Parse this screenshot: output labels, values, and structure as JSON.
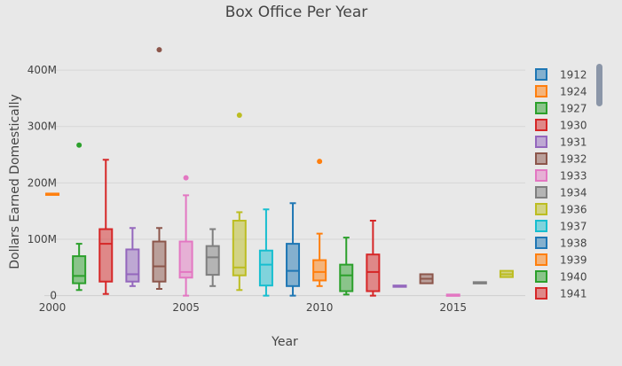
{
  "chart_data": {
    "type": "box",
    "title": "Box Office Per Year",
    "xlabel": "Year",
    "ylabel": "Dollars Earned Domestically",
    "x_ticks": [
      2000,
      2005,
      2010,
      2015
    ],
    "y_ticks": [
      0,
      100,
      200,
      300,
      400
    ],
    "y_tick_labels": [
      "0",
      "100M",
      "200M",
      "300M",
      "400M"
    ],
    "xlim": [
      1999.7,
      2017.7
    ],
    "ylim": [
      -10,
      430
    ],
    "y_unit": "millions of dollars",
    "grid": true,
    "legend": "right",
    "legend_entries": [
      "1912",
      "1924",
      "1927",
      "1930",
      "1931",
      "1932",
      "1933",
      "1934",
      "1936",
      "1937",
      "1938",
      "1939",
      "1940",
      "1941"
    ],
    "series": [
      {
        "x": 2000,
        "color": "#ff7f0e",
        "min": 181,
        "q1": 181,
        "median": 181,
        "q3": 181,
        "max": 181,
        "outliers": []
      },
      {
        "x": 2001,
        "color": "#2ca02c",
        "min": 10,
        "q1": 22,
        "median": 35,
        "q3": 70,
        "max": 92,
        "outliers": [
          267
        ]
      },
      {
        "x": 2002,
        "color": "#d62728",
        "min": 3,
        "q1": 25,
        "median": 92,
        "q3": 118,
        "max": 241,
        "outliers": []
      },
      {
        "x": 2003,
        "color": "#9467bd",
        "min": 17,
        "q1": 25,
        "median": 38,
        "q3": 82,
        "max": 120,
        "outliers": []
      },
      {
        "x": 2004,
        "color": "#8c564b",
        "min": 12,
        "q1": 25,
        "median": 52,
        "q3": 96,
        "max": 120,
        "outliers": [
          436
        ]
      },
      {
        "x": 2005,
        "color": "#e377c2",
        "min": 0,
        "q1": 32,
        "median": 42,
        "q3": 96,
        "max": 178,
        "outliers": [
          209
        ]
      },
      {
        "x": 2006,
        "color": "#7f7f7f",
        "min": 17,
        "q1": 37,
        "median": 68,
        "q3": 88,
        "max": 118,
        "outliers": []
      },
      {
        "x": 2007,
        "color": "#bcbd22",
        "min": 10,
        "q1": 36,
        "median": 50,
        "q3": 133,
        "max": 148,
        "outliers": [
          320
        ]
      },
      {
        "x": 2008,
        "color": "#17becf",
        "min": 0,
        "q1": 18,
        "median": 55,
        "q3": 80,
        "max": 153,
        "outliers": []
      },
      {
        "x": 2009,
        "color": "#1f77b4",
        "min": 0,
        "q1": 17,
        "median": 44,
        "q3": 92,
        "max": 164,
        "outliers": []
      },
      {
        "x": 2010,
        "color": "#ff7f0e",
        "min": 17,
        "q1": 27,
        "median": 42,
        "q3": 63,
        "max": 110,
        "outliers": [
          238
        ]
      },
      {
        "x": 2011,
        "color": "#2ca02c",
        "min": 2,
        "q1": 8,
        "median": 36,
        "q3": 55,
        "max": 103,
        "outliers": []
      },
      {
        "x": 2012,
        "color": "#d62728",
        "min": 0,
        "q1": 8,
        "median": 42,
        "q3": 73,
        "max": 133,
        "outliers": []
      },
      {
        "x": 2013,
        "color": "#9467bd",
        "min": 16,
        "q1": 16,
        "median": 17,
        "q3": 18,
        "max": 18,
        "outliers": []
      },
      {
        "x": 2014,
        "color": "#8c564b",
        "min": 22,
        "q1": 22,
        "median": 30,
        "q3": 38,
        "max": 38,
        "outliers": []
      },
      {
        "x": 2015,
        "color": "#e377c2",
        "min": 0,
        "q1": 0,
        "median": 1,
        "q3": 2,
        "max": 2,
        "outliers": []
      },
      {
        "x": 2016,
        "color": "#7f7f7f",
        "min": 22,
        "q1": 22,
        "median": 23,
        "q3": 24,
        "max": 24,
        "outliers": []
      },
      {
        "x": 2017,
        "color": "#bcbd22",
        "min": 33,
        "q1": 33,
        "median": 38,
        "q3": 44,
        "max": 44,
        "outliers": []
      }
    ]
  },
  "legend_colors": [
    "#1f77b4",
    "#ff7f0e",
    "#2ca02c",
    "#d62728",
    "#9467bd",
    "#8c564b",
    "#e377c2",
    "#7f7f7f",
    "#bcbd22",
    "#17becf",
    "#1f77b4",
    "#ff7f0e",
    "#2ca02c",
    "#d62728"
  ]
}
